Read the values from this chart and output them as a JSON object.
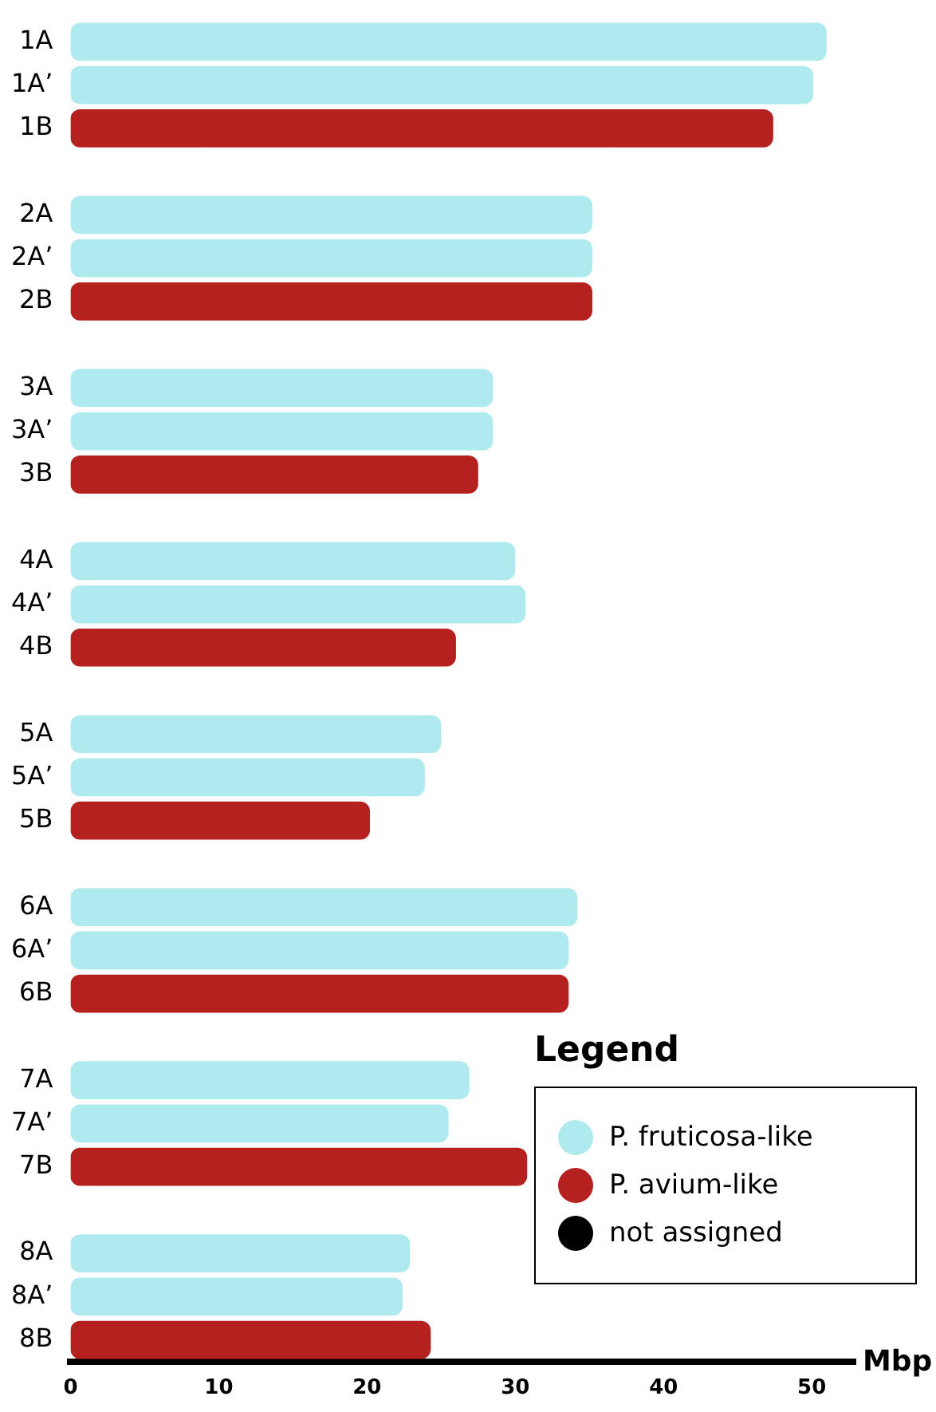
{
  "chart_data": {
    "type": "bar",
    "orientation": "horizontal",
    "xlabel": "Mbp",
    "legend_title": "Legend",
    "legend": "bottom right",
    "grid": false,
    "categories": [
      "1A",
      "1A’",
      "1B",
      null,
      "2A",
      "2A’",
      "2B",
      null,
      "3A",
      "3A’",
      "3B",
      null,
      "4A",
      "4A’",
      "4B",
      null,
      "5A",
      "5A’",
      "5B",
      null,
      "6A",
      "6A’",
      "6B",
      null,
      "7A",
      "7A’",
      "7B",
      null,
      "8A",
      "8A’",
      "8B"
    ],
    "xlim": [
      0,
      53
    ],
    "xticks": [
      0,
      10,
      20,
      30,
      40,
      50
    ],
    "series": [
      {
        "name": "P. fruticosa-like",
        "color": "#aeeaee",
        "values": [
          51.0,
          50.1,
          null,
          null,
          35.2,
          35.2,
          null,
          null,
          28.5,
          28.5,
          null,
          null,
          30.0,
          30.7,
          null,
          null,
          25.0,
          23.9,
          null,
          null,
          34.2,
          33.6,
          null,
          null,
          26.9,
          25.5,
          null,
          null,
          22.9,
          22.4,
          null
        ]
      },
      {
        "name": "P. avium-like",
        "color": "#b5211e",
        "values": [
          null,
          null,
          47.4,
          null,
          null,
          null,
          35.2,
          null,
          null,
          null,
          27.5,
          null,
          null,
          null,
          26.0,
          null,
          null,
          null,
          20.2,
          null,
          null,
          null,
          33.6,
          null,
          null,
          null,
          30.8,
          null,
          null,
          null,
          24.3
        ]
      },
      {
        "name": "not assigned",
        "color": "#000000",
        "values": [
          null,
          null,
          null,
          null,
          null,
          null,
          null,
          null,
          null,
          null,
          null,
          null,
          null,
          null,
          null,
          null,
          null,
          null,
          null,
          null,
          null,
          null,
          null,
          null,
          null,
          null,
          null,
          null,
          null,
          null,
          null
        ]
      }
    ]
  }
}
